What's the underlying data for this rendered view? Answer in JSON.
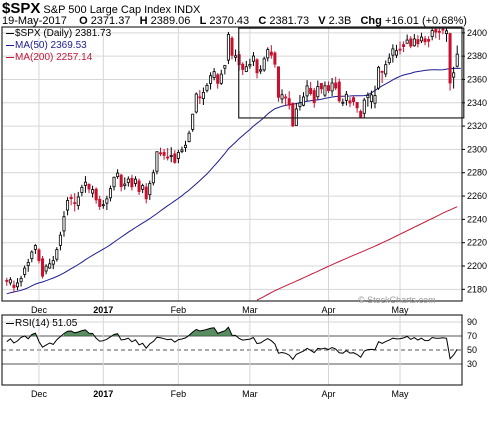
{
  "header": {
    "symbol": "$SPX",
    "name": "S&P 500 Large Cap Index",
    "exchange": "INDX",
    "date": "19-May-2017",
    "open_label": "O",
    "open": "2371.37",
    "high_label": "H",
    "high": "2389.06",
    "low_label": "L",
    "low": "2370.43",
    "close_label": "C",
    "close": "2381.73",
    "volume_label": "V",
    "volume": "2.3B",
    "chg_label": "Chg",
    "chg": "+16.01 (+0.68%)",
    "legend_price": "$SPX (Daily) 2381.73",
    "legend_ma50": "MA(50) 2369.53",
    "legend_ma200": "MA(200) 2257.14",
    "rsi_label": "RSI(14) 51.05",
    "watermark": "© StockCharts.com"
  },
  "chart_data": {
    "type": "candlestick",
    "colors": {
      "up": "#000000",
      "down": "#c8102e",
      "ma50": "#1c1c8f",
      "ma200": "#c2183a",
      "rsi": "#000000",
      "rsi_fill": "#2f6f3a"
    },
    "price_axis": {
      "ylim": [
        2170,
        2405
      ],
      "ticks": [
        2180,
        2200,
        2220,
        2240,
        2260,
        2280,
        2300,
        2320,
        2340,
        2360,
        2380,
        2400
      ]
    },
    "month_ticks": [
      {
        "label": "Dec",
        "bar": 9,
        "bold": false
      },
      {
        "label": "2017",
        "bar": 27,
        "bold": true
      },
      {
        "label": "Feb",
        "bar": 48,
        "bold": false
      },
      {
        "label": "Mar",
        "bar": 68,
        "bold": false
      },
      {
        "label": "Apr",
        "bar": 90,
        "bold": false
      },
      {
        "label": "May",
        "bar": 110,
        "bold": false
      }
    ],
    "candles": [
      [
        2187.7,
        2186.8,
        2189.9,
        2183.1
      ],
      [
        2185.5,
        2188.2,
        2190.5,
        2183.4
      ],
      [
        2183.6,
        2181.6,
        2187.6,
        2177.6
      ],
      [
        2182.2,
        2185.5,
        2189.6,
        2179.2
      ],
      [
        2186.5,
        2189.4,
        2191.6,
        2182.4
      ],
      [
        2192.8,
        2198.2,
        2200.5,
        2190.0
      ],
      [
        2200.4,
        2203.1,
        2206.1,
        2195.1
      ],
      [
        2206.3,
        2212.0,
        2213.5,
        2203.2
      ],
      [
        2214.3,
        2217.6,
        2218.8,
        2210.4
      ],
      [
        2213.9,
        2204.6,
        2215.3,
        2202.2
      ],
      [
        2206.2,
        2191.3,
        2208.6,
        2189.3
      ],
      [
        2195.7,
        2199.9,
        2201.6,
        2192.9
      ],
      [
        2198.3,
        2201.9,
        2206.3,
        2197.6
      ],
      [
        2201.6,
        2204.6,
        2208.6,
        2197.3
      ],
      [
        2205.9,
        2214.1,
        2216.2,
        2203.8
      ],
      [
        2217.7,
        2226.5,
        2229.4,
        2213.4
      ],
      [
        2230.1,
        2242.3,
        2247.0,
        2225.2
      ],
      [
        2248.0,
        2256.2,
        2259.1,
        2243.5
      ],
      [
        2258.9,
        2257.8,
        2261.6,
        2252.1
      ],
      [
        2254.4,
        2254.2,
        2262.5,
        2246.8
      ],
      [
        2251.9,
        2259.2,
        2263.6,
        2248.3
      ],
      [
        2263.1,
        2267.5,
        2269.7,
        2259.7
      ],
      [
        2269.2,
        2271.9,
        2277.1,
        2262.8
      ],
      [
        2270.1,
        2266.0,
        2270.9,
        2262.5
      ],
      [
        2262.5,
        2265.5,
        2268.9,
        2258.8
      ],
      [
        2266.0,
        2256.7,
        2267.4,
        2253.5
      ],
      [
        2257.2,
        2251.1,
        2260.2,
        2248.1
      ],
      [
        2252.5,
        2252.6,
        2256.6,
        2249.1
      ],
      [
        2253.9,
        2257.6,
        2260.2,
        2248.1
      ],
      [
        2258.5,
        2266.4,
        2269.0,
        2255.4
      ],
      [
        2268.0,
        2276.1,
        2276.7,
        2264.8
      ],
      [
        2276.7,
        2279.7,
        2283.0,
        2274.8
      ],
      [
        2277.9,
        2268.1,
        2279.2,
        2264.0
      ],
      [
        2269.1,
        2270.3,
        2276.0,
        2265.5
      ],
      [
        2271.7,
        2274.6,
        2276.9,
        2268.1
      ],
      [
        2275.2,
        2267.9,
        2278.3,
        2264.8
      ],
      [
        2270.8,
        2274.5,
        2277.0,
        2268.1
      ],
      [
        2273.0,
        2263.9,
        2275.1,
        2261.0
      ],
      [
        2265.8,
        2269.0,
        2270.6,
        2262.6
      ],
      [
        2267.7,
        2257.6,
        2271.0,
        2253.7
      ],
      [
        2261.2,
        2270.8,
        2273.3,
        2256.7
      ],
      [
        2271.4,
        2280.0,
        2282.6,
        2269.1
      ],
      [
        2281.3,
        2298.0,
        2298.4,
        2278.6
      ],
      [
        2297.1,
        2296.7,
        2301.5,
        2294.2
      ],
      [
        2297.4,
        2294.9,
        2300.4,
        2291.2
      ],
      [
        2293.5,
        2292.7,
        2301.2,
        2290.6
      ],
      [
        2294.0,
        2294.8,
        2301.9,
        2289.0
      ],
      [
        2296.2,
        2288.9,
        2299.3,
        2287.6
      ],
      [
        2292.3,
        2297.4,
        2299.7,
        2288.2
      ],
      [
        2298.2,
        2299.6,
        2302.4,
        2296.8
      ],
      [
        2301.6,
        2303.6,
        2307.4,
        2297.9
      ],
      [
        2306.7,
        2313.9,
        2316.1,
        2306.0
      ],
      [
        2317.2,
        2330.2,
        2330.6,
        2315.1
      ],
      [
        2332.1,
        2347.5,
        2348.9,
        2330.8
      ],
      [
        2345.1,
        2344.3,
        2351.0,
        2339.0
      ],
      [
        2343.6,
        2348.9,
        2353.1,
        2338.1
      ],
      [
        2350.7,
        2354.9,
        2357.0,
        2348.8
      ],
      [
        2356.6,
        2363.2,
        2366.1,
        2351.4
      ],
      [
        2361.6,
        2366.7,
        2369.8,
        2359.3
      ],
      [
        2364.0,
        2356.7,
        2365.5,
        2352.1
      ],
      [
        2356.7,
        2364.6,
        2368.3,
        2355.3
      ],
      [
        2369.7,
        2372.0,
        2372.5,
        2364.3
      ],
      [
        2376.6,
        2398.6,
        2400.8,
        2373.2
      ],
      [
        2395.4,
        2380.7,
        2397.1,
        2377.2
      ],
      [
        2379.0,
        2380.3,
        2385.7,
        2375.4
      ],
      [
        2381.3,
        2372.6,
        2384.4,
        2367.5
      ],
      [
        2373.1,
        2368.6,
        2374.8,
        2363.8
      ],
      [
        2366.8,
        2370.9,
        2375.9,
        2366.3
      ],
      [
        2371.6,
        2372.9,
        2377.8,
        2369.2
      ],
      [
        2375.6,
        2380.1,
        2383.6,
        2371.5
      ],
      [
        2376.9,
        2365.7,
        2378.2,
        2360.9
      ],
      [
        2367.2,
        2368.3,
        2372.2,
        2364.8
      ],
      [
        2368.2,
        2377.7,
        2379.6,
        2366.6
      ],
      [
        2378.5,
        2385.6,
        2387.5,
        2375.4
      ],
      [
        2383.5,
        2380.9,
        2389.4,
        2377.8
      ],
      [
        2382.7,
        2373.1,
        2384.2,
        2370.1
      ],
      [
        2370.9,
        2344.7,
        2370.2,
        2340.9
      ],
      [
        2343.3,
        2346.9,
        2351.5,
        2339.5
      ],
      [
        2345.0,
        2344.2,
        2347.5,
        2337.7
      ],
      [
        2343.6,
        2337.9,
        2349.9,
        2334.2
      ],
      [
        2339.6,
        2320.2,
        2340.2,
        2319.2
      ],
      [
        2320.5,
        2334.7,
        2339.5,
        2321.0
      ],
      [
        2336.9,
        2339.9,
        2346.7,
        2333.4
      ],
      [
        2337.9,
        2345.0,
        2349.1,
        2337.0
      ],
      [
        2345.9,
        2354.5,
        2359.4,
        2341.5
      ],
      [
        2352.4,
        2347.9,
        2357.9,
        2346.2
      ],
      [
        2350.5,
        2340.1,
        2352.8,
        2335.8
      ],
      [
        2345.2,
        2353.9,
        2359.1,
        2342.9
      ],
      [
        2356.6,
        2352.0,
        2356.8,
        2347.9
      ],
      [
        2346.6,
        2354.5,
        2358.3,
        2344.9
      ],
      [
        2354.8,
        2350.5,
        2358.3,
        2348.4
      ],
      [
        2350.2,
        2357.0,
        2361.3,
        2345.8
      ],
      [
        2357.0,
        2352.7,
        2362.3,
        2350.8
      ],
      [
        2357.8,
        2341.7,
        2360.7,
        2339.9
      ],
      [
        2340.2,
        2340.5,
        2343.7,
        2337.2
      ],
      [
        2342.1,
        2347.3,
        2350.1,
        2337.7
      ],
      [
        2341.7,
        2339.8,
        2344.8,
        2336.3
      ],
      [
        2344.4,
        2341.0,
        2345.7,
        2337.6
      ],
      [
        2340.3,
        2335.7,
        2339.6,
        2331.5
      ],
      [
        2332.6,
        2327.1,
        2334.3,
        2327.6
      ],
      [
        2331.0,
        2342.3,
        2344.2,
        2326.9
      ],
      [
        2344.4,
        2346.4,
        2348.9,
        2336.7
      ],
      [
        2341.0,
        2346.8,
        2350.4,
        2335.0
      ],
      [
        2339.7,
        2346.2,
        2354.7,
        2335.3
      ],
      [
        2352.6,
        2370.4,
        2371.7,
        2351.1
      ],
      [
        2367.0,
        2366.2,
        2367.6,
        2357.0
      ],
      [
        2364.7,
        2372.7,
        2376.3,
        2362.0
      ],
      [
        2374.4,
        2378.4,
        2382.4,
        2372.6
      ],
      [
        2380.9,
        2386.2,
        2390.1,
        2374.5
      ],
      [
        2380.9,
        2384.7,
        2389.7,
        2378.4
      ],
      [
        2386.0,
        2385.4,
        2392.6,
        2381.4
      ],
      [
        2389.9,
        2388.2,
        2392.7,
        2383.5
      ],
      [
        2391.0,
        2393.8,
        2398.5,
        2391.1
      ],
      [
        2394.8,
        2388.6,
        2397.2,
        2386.8
      ],
      [
        2388.9,
        2394.7,
        2399.0,
        2388.1
      ],
      [
        2394.2,
        2390.6,
        2398.0,
        2387.5
      ],
      [
        2393.1,
        2396.4,
        2400.1,
        2391.2
      ],
      [
        2394.9,
        2392.3,
        2397.4,
        2389.3
      ],
      [
        2394.3,
        2392.8,
        2397.0,
        2387.5
      ],
      [
        2396.8,
        2402.0,
        2404.0,
        2393.6
      ],
      [
        2402.8,
        2400.7,
        2404.4,
        2395.3
      ],
      [
        2401.3,
        2400.7,
        2404.9,
        2394.0
      ],
      [
        2403.2,
        2402.5,
        2405.0,
        2398.7
      ],
      [
        2399.3,
        2401.7,
        2404.0,
        2392.3
      ],
      [
        2399.4,
        2357.0,
        2400.1,
        2350.5
      ],
      [
        2362.0,
        2365.7,
        2370.9,
        2352.2
      ],
      [
        2371.4,
        2381.7,
        2389.1,
        2370.4
      ]
    ],
    "ma50": [
      2176.2,
      2177.1,
      2177.7,
      2178.4,
      2179.2,
      2180.2,
      2181.4,
      2183.0,
      2184.5,
      2185.5,
      2186.3,
      2187.4,
      2188.6,
      2189.7,
      2191.0,
      2192.5,
      2194.1,
      2195.9,
      2197.7,
      2199.4,
      2201.3,
      2203.3,
      2205.4,
      2207.3,
      2209.2,
      2211.0,
      2212.7,
      2214.5,
      2216.3,
      2218.3,
      2220.5,
      2222.7,
      2224.8,
      2226.9,
      2229.0,
      2231.0,
      2233.0,
      2234.9,
      2236.8,
      2238.7,
      2240.7,
      2242.9,
      2245.0,
      2247.3,
      2249.5,
      2251.7,
      2253.7,
      2255.9,
      2258.0,
      2260.3,
      2262.8,
      2265.1,
      2267.9,
      2270.6,
      2273.3,
      2276.2,
      2279.0,
      2282.4,
      2285.9,
      2289.2,
      2292.9,
      2296.5,
      2300.6,
      2303.4,
      2306.3,
      2309.3,
      2311.9,
      2314.5,
      2317.1,
      2320.0,
      2322.4,
      2324.8,
      2327.5,
      2330.4,
      2332.8,
      2334.9,
      2336.0,
      2337.1,
      2337.8,
      2338.4,
      2338.7,
      2339.4,
      2340.0,
      2340.7,
      2341.3,
      2341.7,
      2342.1,
      2342.5,
      2343.1,
      2343.8,
      2344.3,
      2345.0,
      2345.4,
      2345.6,
      2345.6,
      2345.7,
      2345.8,
      2346.1,
      2346.1,
      2346.1,
      2346.2,
      2346.8,
      2348.6,
      2350.6,
      2352.6,
      2354.6,
      2356.2,
      2357.9,
      2359.7,
      2361.3,
      2362.7,
      2363.8,
      2364.6,
      2365.2,
      2366.3,
      2366.8,
      2367.3,
      2367.8,
      2368.1,
      2368.3,
      2368.3,
      2368.2,
      2368.4,
      2368.9,
      2369.3,
      2369.5,
      2369.6,
      2369.5
    ]
  }
}
